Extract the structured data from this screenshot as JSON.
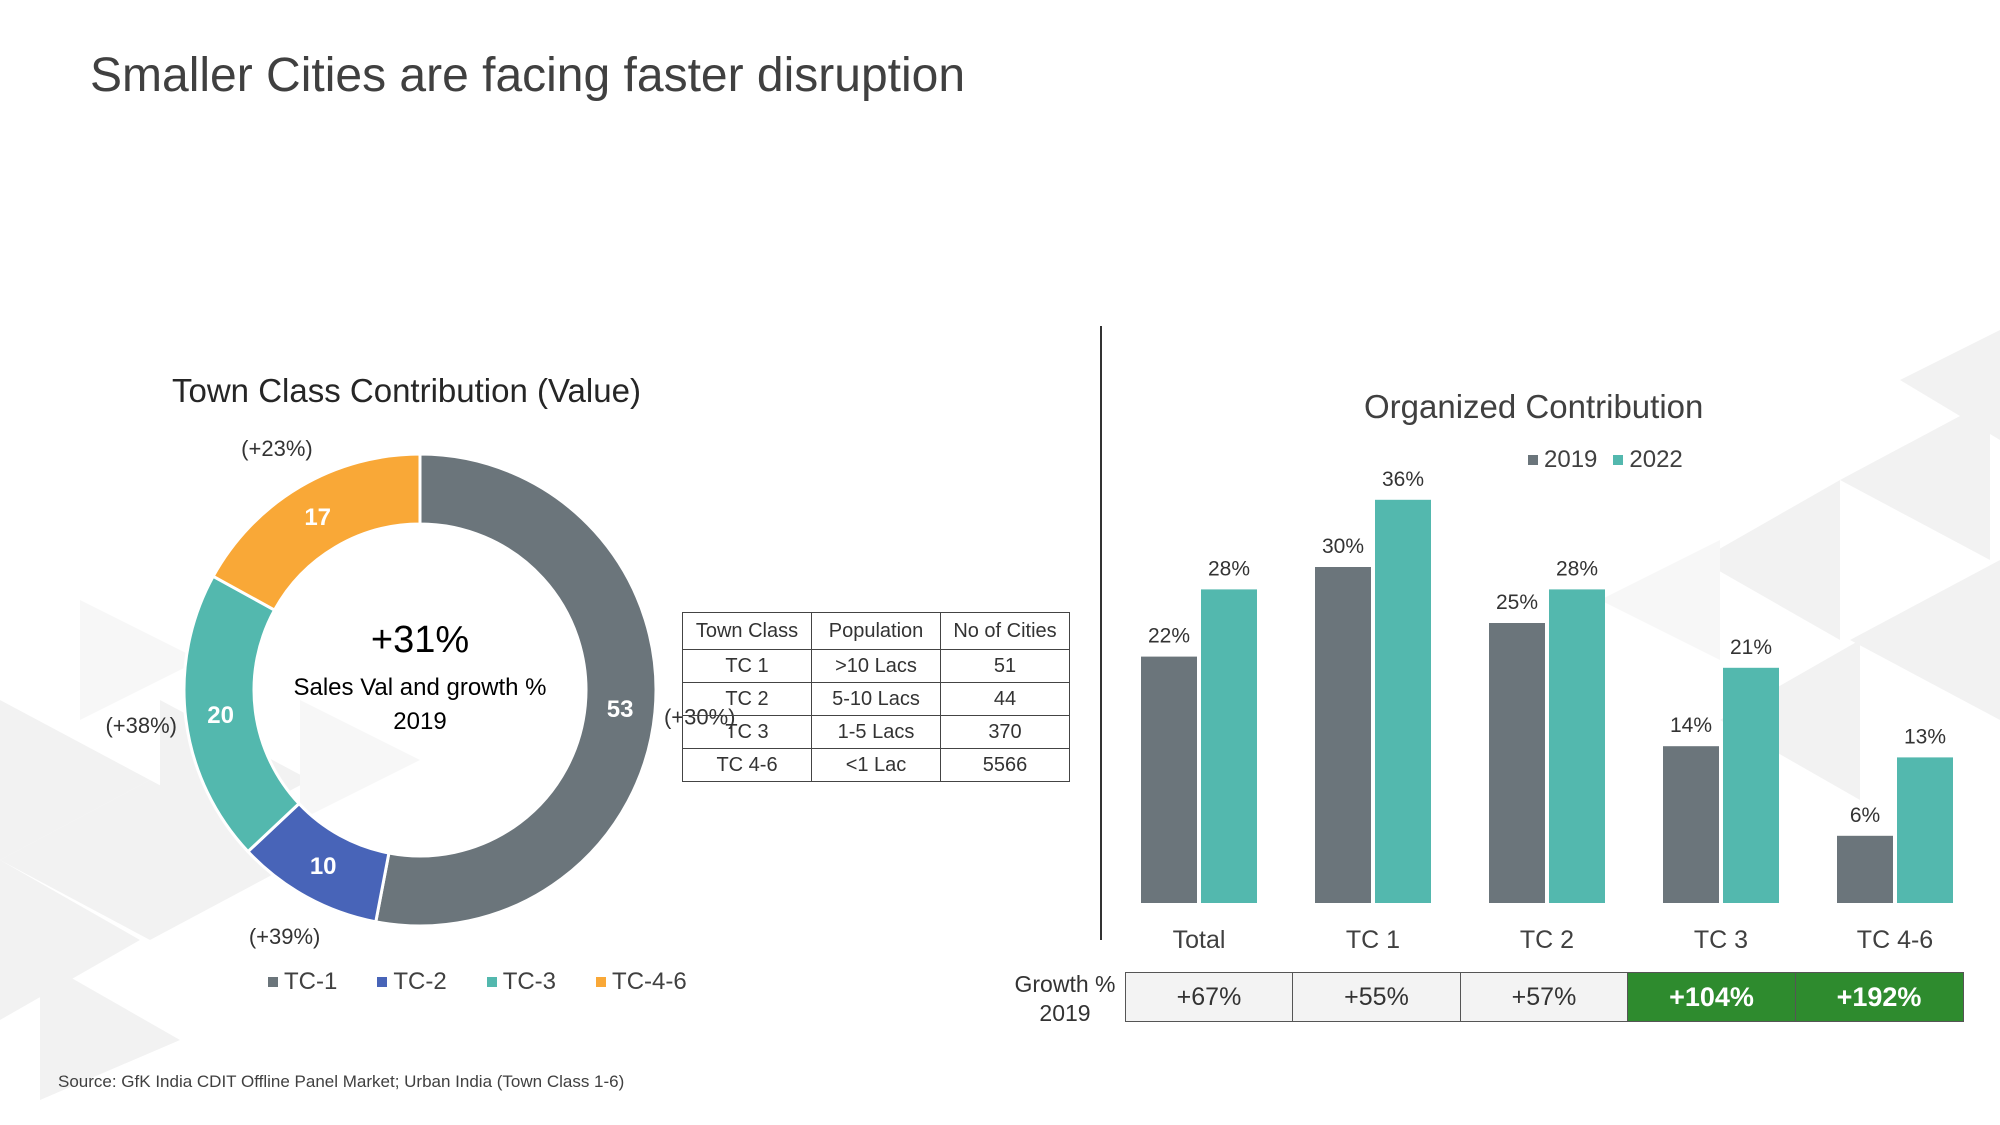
{
  "title": "Smaller Cities are facing faster disruption",
  "source": "Source: GfK India CDIT Offline Panel Market;  Urban India (Town Class 1-6)",
  "colors": {
    "tc1": "#6b757b",
    "tc2": "#4864b8",
    "tc3": "#53b8ae",
    "tc46": "#f9a837",
    "bar2019": "#6b757b",
    "bar2022": "#53b8ae",
    "highlight": "#2e8b2e"
  },
  "chart_data": [
    {
      "type": "pie",
      "title": "Town Class Contribution (Value)",
      "center_value": "+31%",
      "center_text_1": "Sales Val and growth %",
      "center_text_2": "2019",
      "categories": [
        "TC-1",
        "TC-2",
        "TC-3",
        "TC-4-6"
      ],
      "values": [
        53,
        10,
        20,
        17
      ],
      "growth": [
        "(+30%)",
        "(+39%)",
        "(+38%)",
        "(+23%)"
      ],
      "legend": [
        "TC-1",
        "TC-2",
        "TC-3",
        "TC-4-6"
      ]
    },
    {
      "type": "table",
      "columns": [
        "Town Class",
        "Population",
        "No of Cities"
      ],
      "rows": [
        [
          "TC 1",
          ">10 Lacs",
          "51"
        ],
        [
          "TC 2",
          "5-10 Lacs",
          "44"
        ],
        [
          "TC 3",
          "1-5 Lacs",
          "370"
        ],
        [
          "TC 4-6",
          "<1 Lac",
          "5566"
        ]
      ]
    },
    {
      "type": "bar",
      "title": "Organized Contribution",
      "categories": [
        "Total",
        "TC 1",
        "TC 2",
        "TC 3",
        "TC 4-6"
      ],
      "series": [
        {
          "name": "2019",
          "values": [
            22,
            30,
            25,
            14,
            6
          ],
          "labels": [
            "22%",
            "30%",
            "25%",
            "14%",
            "6%"
          ]
        },
        {
          "name": "2022",
          "values": [
            28,
            36,
            28,
            21,
            13
          ],
          "labels": [
            "28%",
            "36%",
            "28%",
            "21%",
            "13%"
          ]
        }
      ],
      "ylim": [
        0,
        40
      ],
      "growth_label_1": "Growth %",
      "growth_label_2": "2019",
      "growth": [
        "+67%",
        "+55%",
        "+57%",
        "+104%",
        "+192%"
      ],
      "growth_highlight": [
        false,
        false,
        false,
        true,
        true
      ]
    }
  ]
}
